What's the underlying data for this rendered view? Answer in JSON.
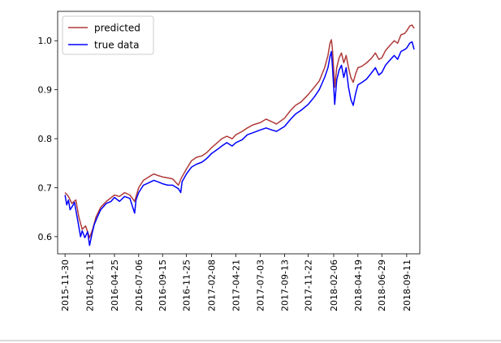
{
  "chart_data": {
    "type": "line",
    "title": "",
    "xlabel": "",
    "ylabel": "",
    "x_tick_labels": [
      "2015-11-30",
      "2016-02-11",
      "2016-04-25",
      "2016-07-06",
      "2016-09-15",
      "2016-11-25",
      "2017-02-08",
      "2017-04-21",
      "2017-07-03",
      "2017-09-13",
      "2017-11-22",
      "2018-02-06",
      "2018-04-19",
      "2018-06-29",
      "2018-09-11"
    ],
    "y_ticks": [
      0.6,
      0.7,
      0.8,
      0.9,
      1.0
    ],
    "y_tick_labels": [
      "0.6",
      "0.7",
      "0.8",
      "0.9",
      "1.0"
    ],
    "xlim": [
      "2015-11-08",
      "2018-10-20"
    ],
    "ylim": [
      0.565,
      1.06
    ],
    "grid": false,
    "legend_position": "top-left",
    "series": [
      {
        "name": "predicted",
        "color": "#b03a3a",
        "points": [
          [
            "2015-11-30",
            0.69
          ],
          [
            "2015-12-10",
            0.682
          ],
          [
            "2015-12-20",
            0.668
          ],
          [
            "2016-01-01",
            0.675
          ],
          [
            "2016-01-10",
            0.64
          ],
          [
            "2016-01-20",
            0.615
          ],
          [
            "2016-01-30",
            0.622
          ],
          [
            "2016-02-11",
            0.598
          ],
          [
            "2016-02-20",
            0.615
          ],
          [
            "2016-03-01",
            0.64
          ],
          [
            "2016-03-15",
            0.66
          ],
          [
            "2016-04-01",
            0.672
          ],
          [
            "2016-04-25",
            0.685
          ],
          [
            "2016-05-10",
            0.682
          ],
          [
            "2016-05-25",
            0.69
          ],
          [
            "2016-06-10",
            0.685
          ],
          [
            "2016-06-24",
            0.672
          ],
          [
            "2016-07-06",
            0.7
          ],
          [
            "2016-07-20",
            0.715
          ],
          [
            "2016-08-05",
            0.722
          ],
          [
            "2016-08-20",
            0.728
          ],
          [
            "2016-09-01",
            0.725
          ],
          [
            "2016-09-15",
            0.722
          ],
          [
            "2016-10-01",
            0.72
          ],
          [
            "2016-10-15",
            0.718
          ],
          [
            "2016-11-01",
            0.705
          ],
          [
            "2016-11-10",
            0.72
          ],
          [
            "2016-11-25",
            0.738
          ],
          [
            "2016-12-10",
            0.755
          ],
          [
            "2016-12-25",
            0.762
          ],
          [
            "2017-01-10",
            0.765
          ],
          [
            "2017-01-25",
            0.772
          ],
          [
            "2017-02-08",
            0.782
          ],
          [
            "2017-02-25",
            0.792
          ],
          [
            "2017-03-10",
            0.8
          ],
          [
            "2017-03-25",
            0.805
          ],
          [
            "2017-04-10",
            0.8
          ],
          [
            "2017-04-21",
            0.808
          ],
          [
            "2017-05-10",
            0.815
          ],
          [
            "2017-05-25",
            0.822
          ],
          [
            "2017-06-10",
            0.828
          ],
          [
            "2017-07-03",
            0.833
          ],
          [
            "2017-07-20",
            0.84
          ],
          [
            "2017-08-05",
            0.835
          ],
          [
            "2017-08-20",
            0.83
          ],
          [
            "2017-09-13",
            0.842
          ],
          [
            "2017-10-01",
            0.858
          ],
          [
            "2017-10-15",
            0.868
          ],
          [
            "2017-11-01",
            0.875
          ],
          [
            "2017-11-22",
            0.89
          ],
          [
            "2017-12-10",
            0.905
          ],
          [
            "2017-12-25",
            0.918
          ],
          [
            "2018-01-10",
            0.945
          ],
          [
            "2018-01-20",
            0.97
          ],
          [
            "2018-01-26",
            0.995
          ],
          [
            "2018-01-30",
            1.002
          ],
          [
            "2018-02-02",
            0.985
          ],
          [
            "2018-02-06",
            0.94
          ],
          [
            "2018-02-09",
            0.905
          ],
          [
            "2018-02-15",
            0.945
          ],
          [
            "2018-02-22",
            0.965
          ],
          [
            "2018-03-01",
            0.975
          ],
          [
            "2018-03-08",
            0.955
          ],
          [
            "2018-03-15",
            0.97
          ],
          [
            "2018-03-22",
            0.945
          ],
          [
            "2018-03-29",
            0.925
          ],
          [
            "2018-04-05",
            0.915
          ],
          [
            "2018-04-12",
            0.932
          ],
          [
            "2018-04-19",
            0.945
          ],
          [
            "2018-05-01",
            0.948
          ],
          [
            "2018-05-15",
            0.955
          ],
          [
            "2018-05-30",
            0.965
          ],
          [
            "2018-06-10",
            0.975
          ],
          [
            "2018-06-20",
            0.962
          ],
          [
            "2018-06-29",
            0.965
          ],
          [
            "2018-07-10",
            0.98
          ],
          [
            "2018-07-25",
            0.992
          ],
          [
            "2018-08-05",
            1.0
          ],
          [
            "2018-08-15",
            0.995
          ],
          [
            "2018-08-25",
            1.012
          ],
          [
            "2018-09-05",
            1.015
          ],
          [
            "2018-09-11",
            1.02
          ],
          [
            "2018-09-20",
            1.03
          ],
          [
            "2018-09-27",
            1.032
          ],
          [
            "2018-10-03",
            1.025
          ]
        ]
      },
      {
        "name": "true data",
        "color": "#0000ff",
        "points": [
          [
            "2015-11-30",
            0.685
          ],
          [
            "2015-12-05",
            0.665
          ],
          [
            "2015-12-10",
            0.675
          ],
          [
            "2015-12-15",
            0.655
          ],
          [
            "2015-12-20",
            0.66
          ],
          [
            "2015-12-28",
            0.67
          ],
          [
            "2016-01-05",
            0.64
          ],
          [
            "2016-01-10",
            0.62
          ],
          [
            "2016-01-15",
            0.6
          ],
          [
            "2016-01-20",
            0.612
          ],
          [
            "2016-01-28",
            0.598
          ],
          [
            "2016-02-05",
            0.61
          ],
          [
            "2016-02-11",
            0.582
          ],
          [
            "2016-02-18",
            0.605
          ],
          [
            "2016-02-25",
            0.625
          ],
          [
            "2016-03-05",
            0.64
          ],
          [
            "2016-03-15",
            0.655
          ],
          [
            "2016-04-01",
            0.668
          ],
          [
            "2016-04-15",
            0.672
          ],
          [
            "2016-04-25",
            0.68
          ],
          [
            "2016-05-10",
            0.672
          ],
          [
            "2016-05-25",
            0.682
          ],
          [
            "2016-06-10",
            0.678
          ],
          [
            "2016-06-24",
            0.648
          ],
          [
            "2016-06-28",
            0.675
          ],
          [
            "2016-07-06",
            0.69
          ],
          [
            "2016-07-20",
            0.705
          ],
          [
            "2016-08-05",
            0.71
          ],
          [
            "2016-08-20",
            0.715
          ],
          [
            "2016-09-01",
            0.712
          ],
          [
            "2016-09-15",
            0.708
          ],
          [
            "2016-10-01",
            0.705
          ],
          [
            "2016-10-15",
            0.705
          ],
          [
            "2016-11-01",
            0.698
          ],
          [
            "2016-11-08",
            0.69
          ],
          [
            "2016-11-12",
            0.712
          ],
          [
            "2016-11-25",
            0.728
          ],
          [
            "2016-12-10",
            0.742
          ],
          [
            "2016-12-25",
            0.748
          ],
          [
            "2017-01-10",
            0.752
          ],
          [
            "2017-01-25",
            0.76
          ],
          [
            "2017-02-08",
            0.77
          ],
          [
            "2017-02-25",
            0.778
          ],
          [
            "2017-03-10",
            0.785
          ],
          [
            "2017-03-25",
            0.792
          ],
          [
            "2017-04-10",
            0.785
          ],
          [
            "2017-04-21",
            0.792
          ],
          [
            "2017-05-10",
            0.798
          ],
          [
            "2017-05-25",
            0.808
          ],
          [
            "2017-06-10",
            0.812
          ],
          [
            "2017-07-03",
            0.818
          ],
          [
            "2017-07-20",
            0.822
          ],
          [
            "2017-08-05",
            0.818
          ],
          [
            "2017-08-20",
            0.815
          ],
          [
            "2017-09-13",
            0.825
          ],
          [
            "2017-10-01",
            0.84
          ],
          [
            "2017-10-15",
            0.85
          ],
          [
            "2017-11-01",
            0.858
          ],
          [
            "2017-11-22",
            0.87
          ],
          [
            "2017-12-10",
            0.885
          ],
          [
            "2017-12-25",
            0.9
          ],
          [
            "2018-01-10",
            0.925
          ],
          [
            "2018-01-20",
            0.945
          ],
          [
            "2018-01-26",
            0.968
          ],
          [
            "2018-01-30",
            0.978
          ],
          [
            "2018-02-02",
            0.95
          ],
          [
            "2018-02-06",
            0.905
          ],
          [
            "2018-02-09",
            0.87
          ],
          [
            "2018-02-15",
            0.92
          ],
          [
            "2018-02-22",
            0.94
          ],
          [
            "2018-03-01",
            0.95
          ],
          [
            "2018-03-08",
            0.925
          ],
          [
            "2018-03-15",
            0.945
          ],
          [
            "2018-03-22",
            0.905
          ],
          [
            "2018-03-29",
            0.88
          ],
          [
            "2018-04-05",
            0.868
          ],
          [
            "2018-04-12",
            0.892
          ],
          [
            "2018-04-19",
            0.91
          ],
          [
            "2018-05-01",
            0.915
          ],
          [
            "2018-05-15",
            0.922
          ],
          [
            "2018-05-30",
            0.935
          ],
          [
            "2018-06-10",
            0.945
          ],
          [
            "2018-06-20",
            0.93
          ],
          [
            "2018-06-29",
            0.935
          ],
          [
            "2018-07-10",
            0.95
          ],
          [
            "2018-07-25",
            0.962
          ],
          [
            "2018-08-05",
            0.97
          ],
          [
            "2018-08-15",
            0.962
          ],
          [
            "2018-08-25",
            0.978
          ],
          [
            "2018-09-05",
            0.982
          ],
          [
            "2018-09-11",
            0.985
          ],
          [
            "2018-09-20",
            0.995
          ],
          [
            "2018-09-27",
            0.998
          ],
          [
            "2018-10-03",
            0.982
          ]
        ]
      }
    ]
  }
}
